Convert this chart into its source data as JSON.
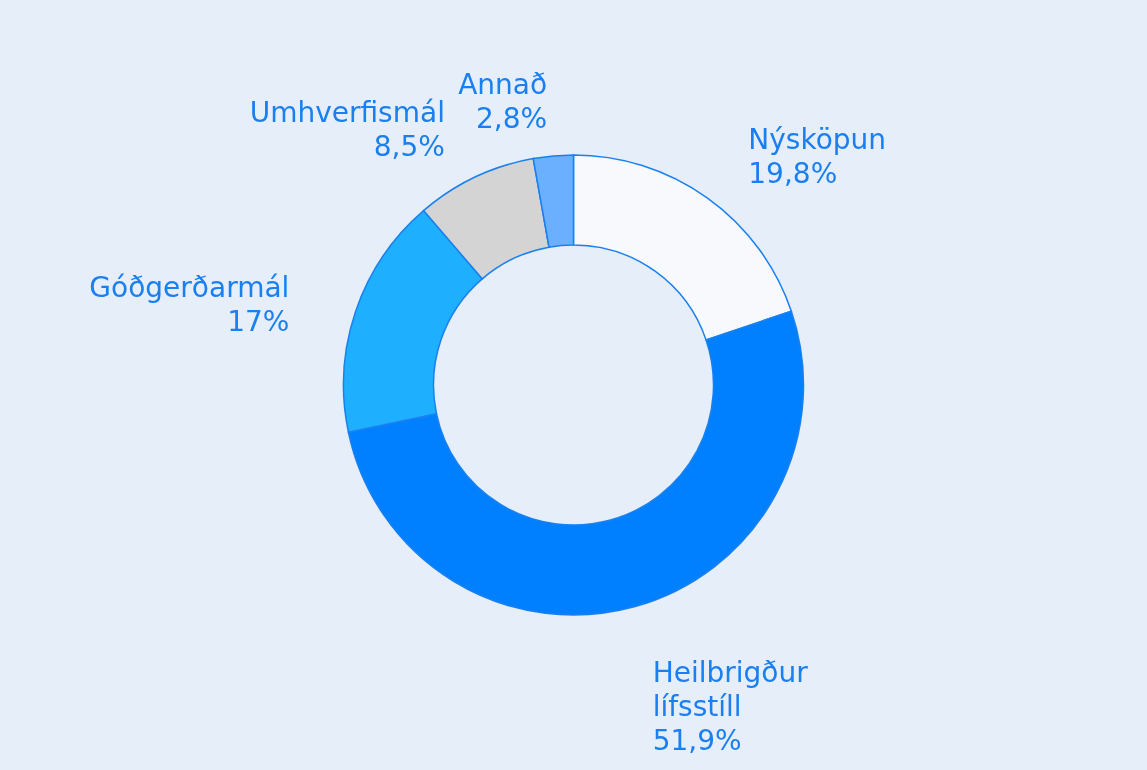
{
  "chart_data": {
    "type": "donut",
    "categories": [
      "Nýsköpun",
      "Heilbrigður lífsstíll",
      "Góðgerðarmál",
      "Umhverfismál",
      "Annað"
    ],
    "values": [
      19.8,
      51.9,
      17,
      8.5,
      2.8
    ],
    "value_labels": [
      "19,8%",
      "51,9%",
      "17%",
      "8,5%",
      "2,8%"
    ],
    "colors": [
      "#f7f9fd",
      "#0080ff",
      "#1eb0ff",
      "#d4d4d4",
      "#6ab0ff"
    ]
  }
}
